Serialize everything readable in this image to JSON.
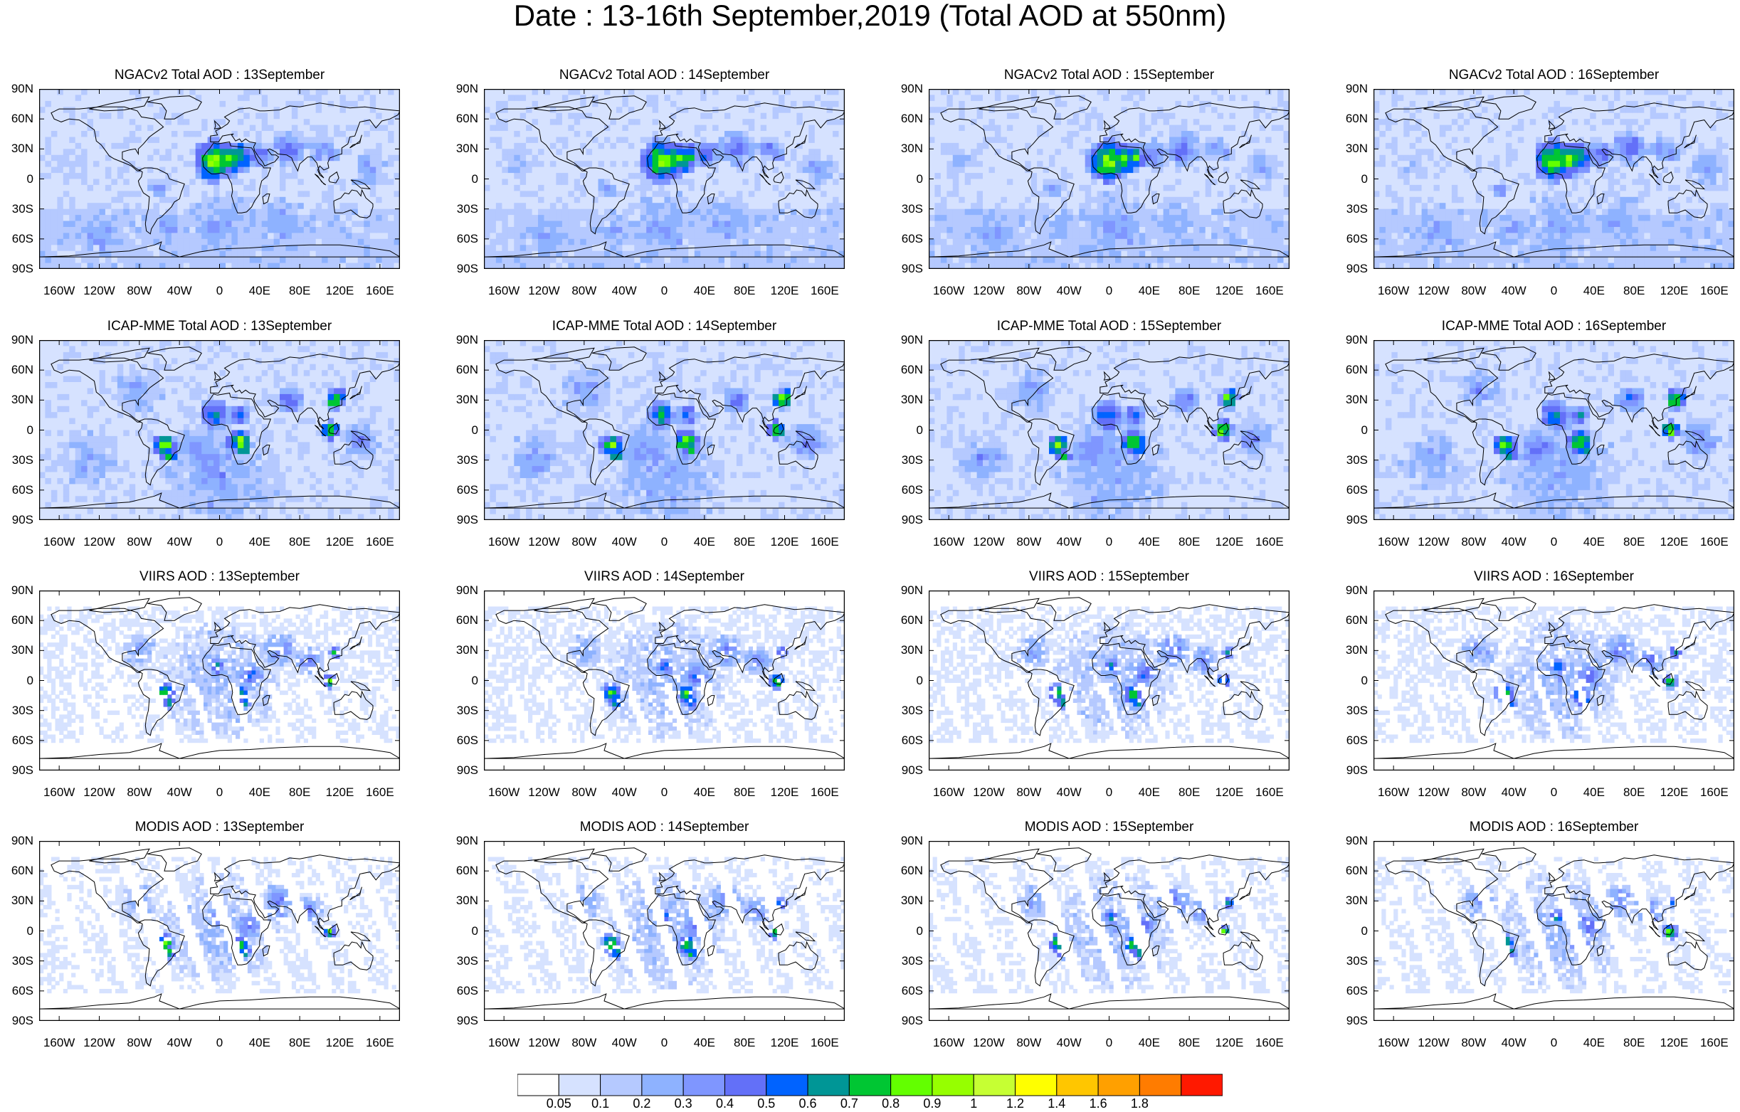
{
  "title": "Date : 13-16th September,2019 (Total AOD at 550nm)",
  "rows": [
    {
      "model": "NGACv2",
      "panels": [
        "NGACv2 Total AOD : 13September",
        "NGACv2 Total AOD : 14September",
        "NGACv2 Total AOD : 15September",
        "NGACv2 Total AOD : 16September"
      ]
    },
    {
      "model": "ICAP-MME",
      "panels": [
        "ICAP-MME Total AOD : 13September",
        "ICAP-MME Total AOD : 14September",
        "ICAP-MME Total AOD : 15September",
        "ICAP-MME Total AOD : 16September"
      ]
    },
    {
      "model": "VIIRS",
      "panels": [
        "VIIRS AOD : 13September",
        "VIIRS AOD : 14September",
        "VIIRS AOD : 15September",
        "VIIRS AOD : 16September"
      ]
    },
    {
      "model": "MODIS",
      "panels": [
        "MODIS AOD : 13September",
        "MODIS AOD : 14September",
        "MODIS AOD : 15September",
        "MODIS AOD : 16September"
      ]
    }
  ],
  "lat_labels": [
    "90N",
    "60N",
    "30N",
    "0",
    "30S",
    "60S",
    "90S"
  ],
  "lon_labels": [
    "160W",
    "120W",
    "80W",
    "40W",
    "0",
    "40E",
    "80E",
    "120E",
    "160E"
  ],
  "lon_values": [
    -160,
    -120,
    -80,
    -40,
    0,
    40,
    80,
    120,
    160
  ],
  "lat_values": [
    90,
    60,
    30,
    0,
    -30,
    -60,
    -90
  ],
  "lon_range": [
    -180,
    180
  ],
  "lat_range": [
    -90,
    90
  ],
  "colorbar": {
    "labels": [
      "0.05",
      "0.1",
      "0.2",
      "0.3",
      "0.4",
      "0.5",
      "0.6",
      "0.7",
      "0.8",
      "0.9",
      "1",
      "1.2",
      "1.4",
      "1.6",
      "1.8"
    ],
    "colors": [
      "#ffffff",
      "#d6e2ff",
      "#b5c9ff",
      "#8eb2ff",
      "#7f96ff",
      "#6370f8",
      "#0063ff",
      "#009696",
      "#00c633",
      "#63ff00",
      "#96ff00",
      "#c6ff33",
      "#ffff00",
      "#ffc600",
      "#ffa000",
      "#ff7c00",
      "#ff1900"
    ]
  }
}
